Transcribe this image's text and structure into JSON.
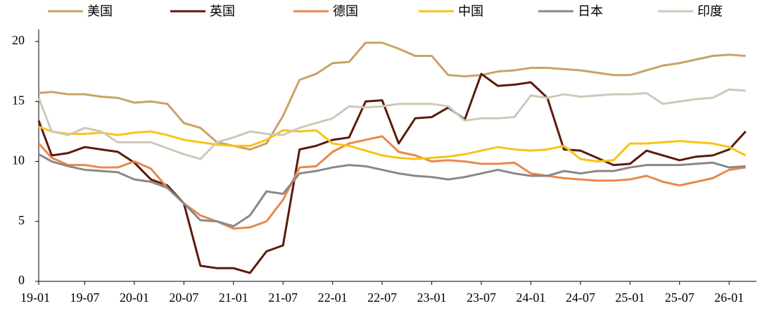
{
  "chart_data": {
    "type": "line",
    "categories": [
      "19-01",
      null,
      null,
      "19-07",
      null,
      null,
      "20-01",
      null,
      null,
      "20-07",
      null,
      null,
      "21-01",
      null,
      null,
      "21-07",
      null,
      null,
      "22-01",
      null,
      null,
      "22-07",
      null,
      null,
      "23-01",
      null,
      null,
      "23-07",
      null,
      null,
      "24-01",
      null,
      null,
      "24-07",
      null,
      null,
      "25-01",
      null,
      null,
      "25-07",
      null,
      null,
      "26-01",
      null
    ],
    "ylim": [
      0,
      21
    ],
    "yticks": [
      0,
      5,
      10,
      15,
      20
    ],
    "series": [
      {
        "name": "美国",
        "color": "#c9a266",
        "values": [
          15.7,
          15.8,
          15.6,
          15.6,
          15.4,
          15.3,
          14.9,
          15.0,
          14.8,
          13.2,
          12.8,
          11.6,
          11.3,
          11.0,
          11.5,
          13.8,
          16.8,
          17.3,
          18.2,
          18.3,
          19.9,
          19.9,
          19.4,
          18.8,
          18.8,
          17.2,
          17.1,
          17.2,
          17.5,
          17.6,
          17.8,
          17.8,
          17.7,
          17.6,
          17.4,
          17.2,
          17.2,
          17.6,
          18.0,
          18.2,
          18.5,
          18.8,
          18.9,
          18.8
        ]
      },
      {
        "name": "英国",
        "color": "#5c1a0b",
        "values": [
          13.4,
          10.5,
          10.7,
          11.2,
          11.0,
          10.8,
          9.9,
          8.5,
          8.0,
          6.5,
          1.3,
          1.1,
          1.1,
          0.7,
          2.5,
          3.0,
          11.0,
          11.3,
          11.8,
          12.0,
          15.0,
          15.1,
          11.5,
          13.6,
          13.7,
          14.5,
          13.5,
          17.3,
          16.3,
          16.4,
          16.6,
          15.3,
          11.0,
          10.9,
          10.3,
          9.7,
          9.8,
          10.9,
          10.5,
          10.1,
          10.4,
          10.5,
          11.0,
          12.5
        ]
      },
      {
        "name": "德国",
        "color": "#e9884a",
        "values": [
          11.5,
          10.3,
          9.7,
          9.7,
          9.5,
          9.5,
          10.0,
          9.4,
          7.8,
          6.5,
          5.5,
          5.0,
          4.4,
          4.5,
          5.0,
          6.8,
          9.5,
          9.6,
          10.8,
          11.5,
          11.8,
          12.1,
          10.8,
          10.5,
          10.0,
          10.1,
          10.0,
          9.8,
          9.8,
          9.9,
          9.0,
          8.8,
          8.6,
          8.5,
          8.4,
          8.4,
          8.5,
          8.8,
          8.3,
          8.0,
          8.3,
          8.6,
          9.3,
          9.5
        ]
      },
      {
        "name": "中国",
        "color": "#f9c316",
        "values": [
          12.9,
          12.5,
          12.3,
          12.3,
          12.4,
          12.2,
          12.4,
          12.5,
          12.2,
          11.8,
          11.6,
          11.4,
          11.3,
          11.3,
          11.8,
          12.6,
          12.5,
          12.6,
          11.5,
          11.3,
          10.9,
          10.5,
          10.3,
          10.2,
          10.3,
          10.4,
          10.6,
          10.9,
          11.2,
          11.0,
          10.9,
          11.0,
          11.3,
          10.2,
          10.0,
          10.1,
          11.5,
          11.5,
          11.6,
          11.7,
          11.6,
          11.5,
          11.2,
          10.5
        ]
      },
      {
        "name": "日本",
        "color": "#888888",
        "values": [
          10.6,
          10.0,
          9.6,
          9.3,
          9.2,
          9.1,
          8.5,
          8.3,
          7.8,
          6.5,
          5.1,
          5.0,
          4.6,
          5.5,
          7.5,
          7.3,
          9.0,
          9.2,
          9.5,
          9.7,
          9.6,
          9.3,
          9.0,
          8.8,
          8.7,
          8.5,
          8.7,
          9.0,
          9.3,
          9.0,
          8.8,
          8.8,
          9.2,
          9.0,
          9.2,
          9.2,
          9.5,
          9.7,
          9.7,
          9.7,
          9.8,
          9.9,
          9.5,
          9.6
        ]
      },
      {
        "name": "印度",
        "color": "#cfc8b8",
        "values": [
          15.3,
          12.5,
          12.2,
          12.8,
          12.5,
          11.6,
          11.6,
          11.6,
          11.1,
          10.6,
          10.2,
          11.6,
          12.0,
          12.5,
          12.3,
          12.2,
          12.8,
          13.2,
          13.6,
          14.6,
          14.5,
          14.6,
          14.8,
          14.8,
          14.8,
          14.6,
          13.4,
          13.6,
          13.6,
          13.7,
          15.5,
          15.3,
          15.6,
          15.4,
          15.5,
          15.6,
          15.6,
          15.7,
          14.8,
          15.0,
          15.2,
          15.3,
          16.0,
          15.9
        ]
      }
    ]
  }
}
